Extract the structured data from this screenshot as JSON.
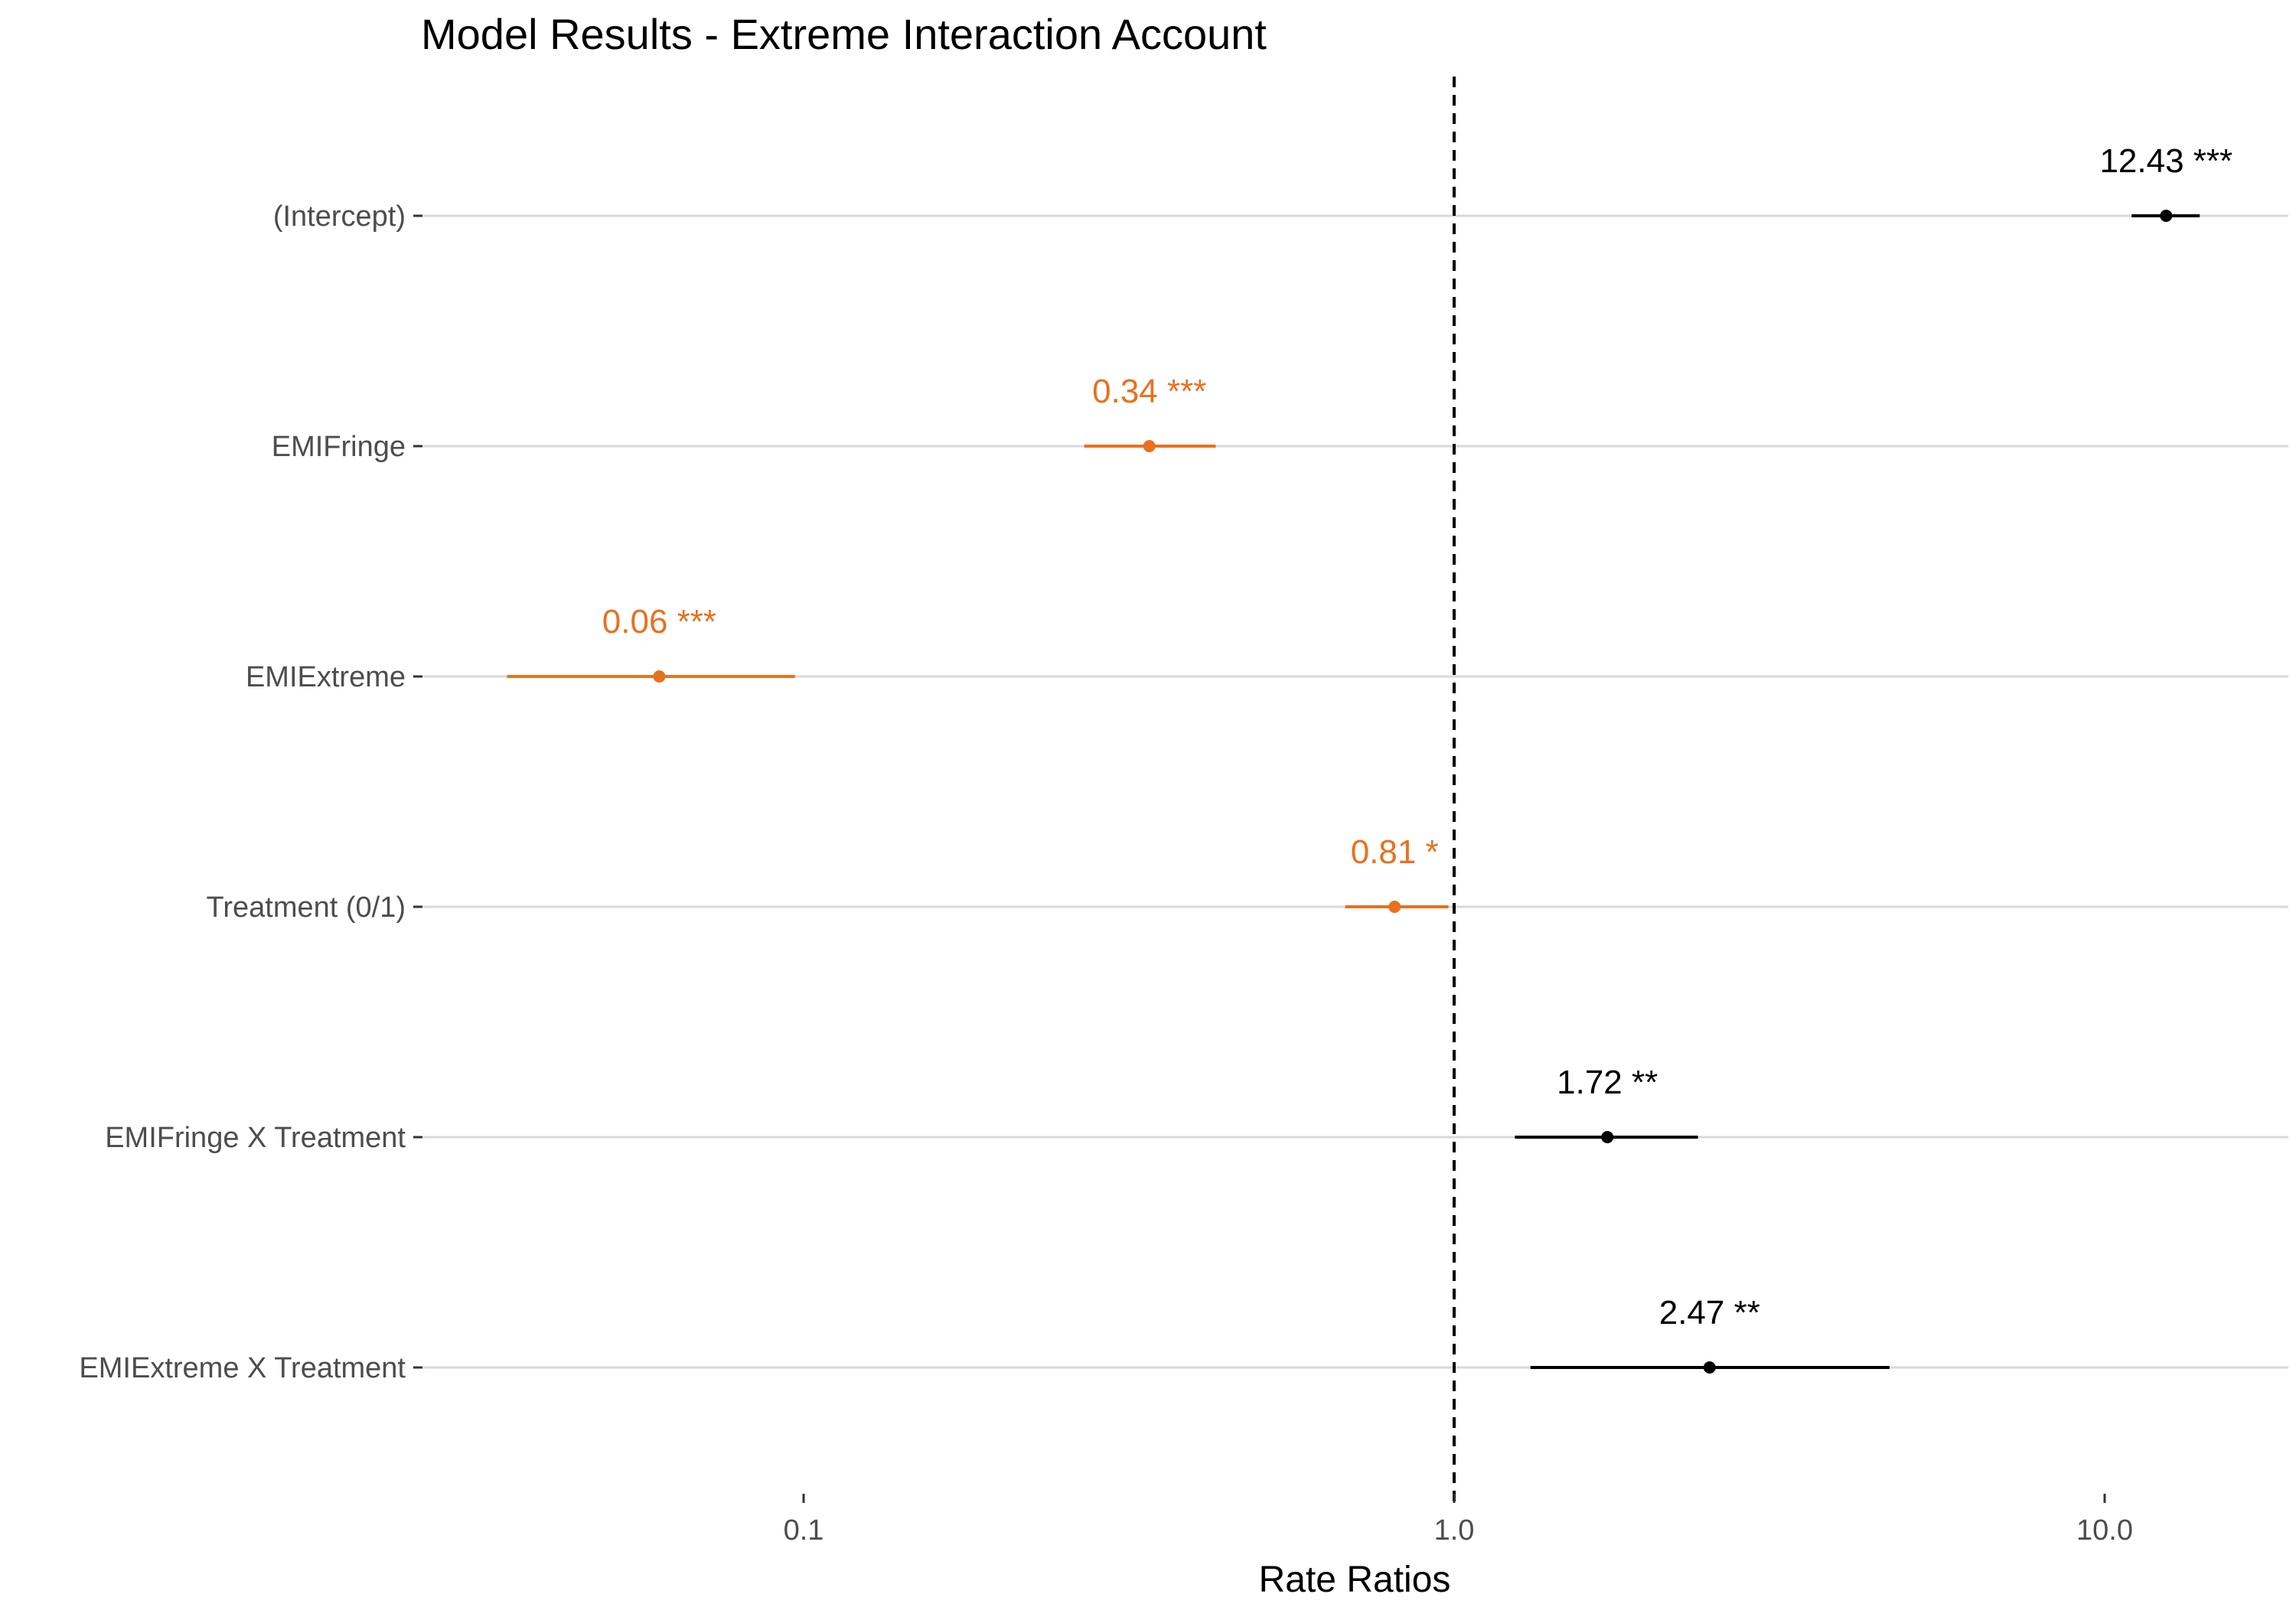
{
  "chart_data": {
    "type": "scatter",
    "subtype": "forest-plot",
    "title": "Model Results - Extreme Interaction Account",
    "xlabel": "Rate Ratios",
    "ylabel": "",
    "x_scale": "log10",
    "xlim": [
      0.022,
      18
    ],
    "x_ticks": [
      {
        "value": 0.1,
        "label": "0.1"
      },
      {
        "value": 1.0,
        "label": "1.0"
      },
      {
        "value": 10.0,
        "label": "10.0"
      }
    ],
    "reference_line": {
      "x": 1.0,
      "style": "dashed"
    },
    "grid": {
      "horizontal": true,
      "vertical": false
    },
    "colors": {
      "positive": "#000000",
      "negative": "#e8711f",
      "gridline": "#d9d9d9",
      "tick_label": "#4d4d4d"
    },
    "terms": [
      {
        "term": "(Intercept)",
        "estimate": 12.43,
        "ci_low": 11.0,
        "ci_high": 14.0,
        "label": "12.43 ***",
        "direction": "positive"
      },
      {
        "term": "EMIFringe",
        "estimate": 0.34,
        "ci_low": 0.27,
        "ci_high": 0.43,
        "label": "0.34 ***",
        "direction": "negative"
      },
      {
        "term": "EMIExtreme",
        "estimate": 0.06,
        "ci_low": 0.035,
        "ci_high": 0.097,
        "label": "0.06 ***",
        "direction": "negative"
      },
      {
        "term": "Treatment (0/1)",
        "estimate": 0.81,
        "ci_low": 0.68,
        "ci_high": 0.98,
        "label": "0.81 *",
        "direction": "negative"
      },
      {
        "term": "EMIFringe X Treatment",
        "estimate": 1.72,
        "ci_low": 1.24,
        "ci_high": 2.37,
        "label": "1.72 **",
        "direction": "positive"
      },
      {
        "term": "EMIExtreme X Treatment",
        "estimate": 2.47,
        "ci_low": 1.31,
        "ci_high": 4.67,
        "label": "2.47 **",
        "direction": "positive"
      }
    ]
  }
}
